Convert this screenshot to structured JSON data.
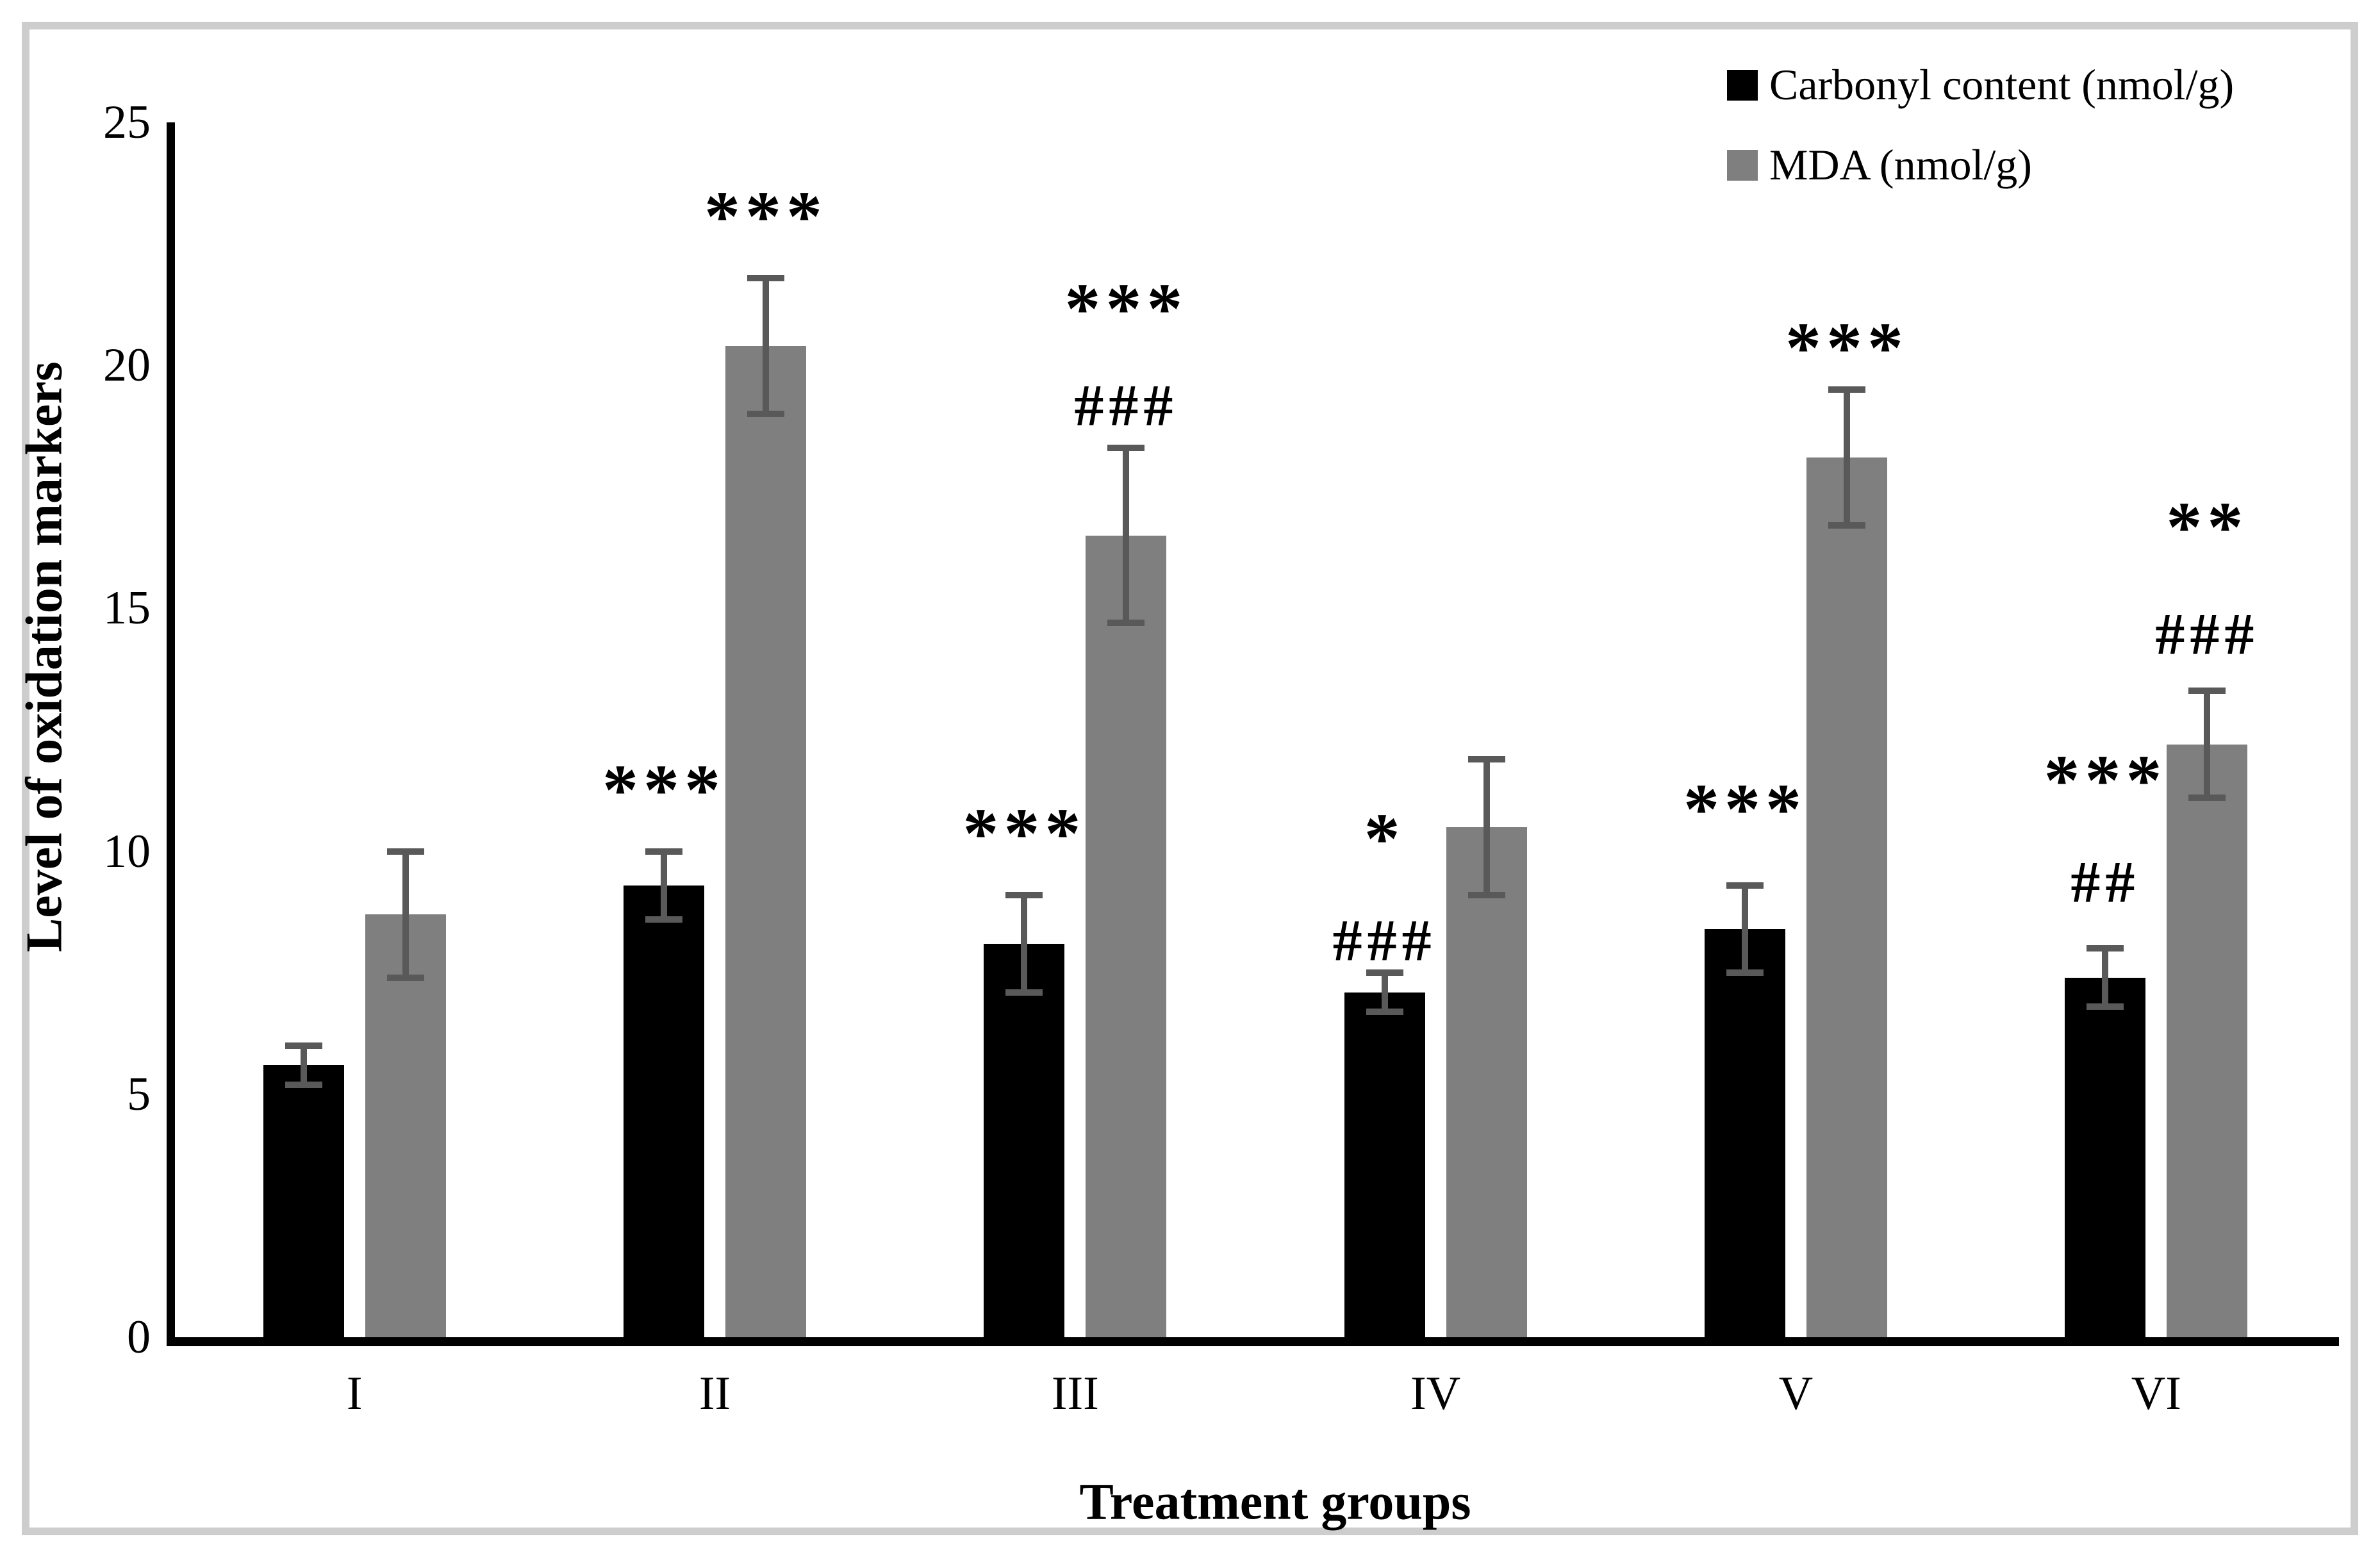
{
  "figure": {
    "background": "#ffffff",
    "border_color": "#cdcdcd"
  },
  "chart_data": {
    "type": "bar",
    "title": "",
    "categories": [
      "I",
      "II",
      "III",
      "IV",
      "V",
      "VI"
    ],
    "series": [
      {
        "name": "Carbonyl content (nmol/g)",
        "color": "#000000",
        "values": [
          5.6,
          9.3,
          8.1,
          7.1,
          8.4,
          7.4
        ],
        "errors": [
          0.4,
          0.7,
          1.0,
          0.4,
          0.9,
          0.6
        ],
        "annotations": [
          [],
          [
            {
              "text": "***",
              "at": 11.7
            }
          ],
          [
            {
              "text": "***",
              "at": 10.8
            }
          ],
          [
            {
              "text": "*",
              "at": 10.7
            },
            {
              "text": "###",
              "at": 8.1
            }
          ],
          [
            {
              "text": "***",
              "at": 11.3
            }
          ],
          [
            {
              "text": "***",
              "at": 11.9
            },
            {
              "text": "##",
              "at": 9.3
            }
          ]
        ]
      },
      {
        "name": "MDA (nmol/g)",
        "color": "#7f7f7f",
        "values": [
          8.7,
          20.4,
          16.5,
          10.5,
          18.1,
          12.2
        ],
        "errors": [
          1.3,
          1.4,
          1.8,
          1.4,
          1.4,
          1.1
        ],
        "annotations": [
          [],
          [
            {
              "text": "***",
              "at": 23.5
            }
          ],
          [
            {
              "text": "***",
              "at": 21.6
            },
            {
              "text": "###",
              "at": 19.1
            }
          ],
          [],
          [
            {
              "text": "***",
              "at": 20.8
            }
          ],
          [
            {
              "text": "**",
              "at": 17.1
            },
            {
              "text": "###",
              "at": 14.4
            }
          ]
        ]
      }
    ],
    "xlabel": "Treatment groups",
    "ylabel": "Level of oxidation markers",
    "ylim": [
      0,
      25
    ],
    "yticks": [
      0,
      5,
      10,
      15,
      20,
      25
    ],
    "legend_position": "top-right",
    "grid": false,
    "error_bar_color": "#595959"
  }
}
